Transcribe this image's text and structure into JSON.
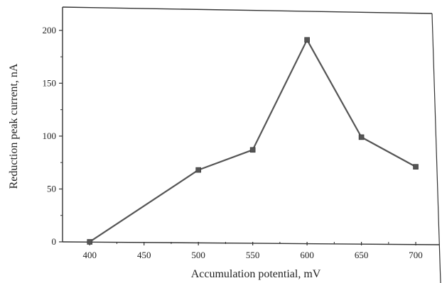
{
  "chart_data": {
    "type": "line",
    "title": "",
    "xlabel": "Accumulation potential, mV",
    "ylabel": "Reduction peak current, nA",
    "xlim": [
      375,
      715
    ],
    "ylim": [
      0,
      222
    ],
    "x_ticks": [
      400,
      450,
      500,
      550,
      600,
      650,
      700
    ],
    "y_ticks": [
      0,
      50,
      100,
      150,
      200
    ],
    "grid": false,
    "legend": "none",
    "series": [
      {
        "x": [
          400,
          500,
          550,
          600,
          650,
          700
        ],
        "y": [
          0,
          68,
          87,
          191,
          99,
          71
        ],
        "color": "#555555",
        "marker": "square"
      }
    ]
  }
}
